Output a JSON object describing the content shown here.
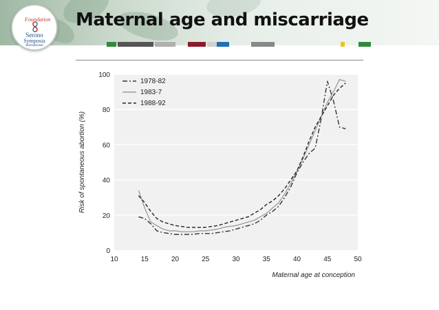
{
  "slide": {
    "title": "Maternal age and miscarriage",
    "logo": {
      "line1": "Serono",
      "line2": "Symposia",
      "line3": "International",
      "script": "Foundation"
    },
    "stripe_colors": [
      "#2f8a3e",
      "#555555",
      "#b0b0b0",
      "#8b1a2b",
      "#d0d0d0",
      "#1f6fb3",
      "#888888",
      "#f0c020",
      "#2f8a3e"
    ]
  },
  "chart_data": {
    "type": "line",
    "title": "",
    "xlabel": "Maternal age at conception",
    "ylabel": "Risk of spontaneous abortion (%)",
    "xlim": [
      10,
      50
    ],
    "ylim": [
      0,
      100
    ],
    "xticks": [
      10,
      15,
      20,
      25,
      30,
      35,
      40,
      45,
      50
    ],
    "yticks": [
      0,
      20,
      40,
      60,
      80,
      100
    ],
    "legend_position": "top-left",
    "series": [
      {
        "name": "1978-82",
        "style": "dashdot",
        "color": "#333333",
        "x": [
          14,
          15,
          16,
          17,
          18,
          19,
          20,
          21,
          22,
          23,
          24,
          25,
          26,
          27,
          28,
          29,
          30,
          31,
          32,
          33,
          34,
          35,
          36,
          37,
          38,
          39,
          40,
          41,
          42,
          43,
          44,
          45,
          46,
          47,
          48
        ],
        "y": [
          19,
          18,
          15,
          11,
          10,
          9.5,
          9,
          9,
          9,
          9,
          9.5,
          9.5,
          9.5,
          10,
          10.5,
          11,
          12,
          13,
          14,
          15,
          17,
          20,
          22,
          25,
          30,
          36,
          44,
          50,
          55,
          58,
          75,
          96,
          85,
          70,
          69
        ]
      },
      {
        "name": "1983-7",
        "style": "solid",
        "color": "#9a9a9a",
        "x": [
          14,
          15,
          16,
          17,
          18,
          19,
          20,
          21,
          22,
          23,
          24,
          25,
          26,
          27,
          28,
          29,
          30,
          31,
          32,
          33,
          34,
          35,
          36,
          37,
          38,
          39,
          40,
          41,
          42,
          43,
          44,
          45,
          46,
          47,
          48
        ],
        "y": [
          34,
          24,
          16,
          14,
          12,
          11,
          11,
          10.5,
          10.5,
          10.5,
          11,
          11,
          11.5,
          12,
          13,
          13.5,
          14,
          15,
          16,
          17,
          19,
          21,
          24,
          27,
          32,
          38,
          45,
          52,
          60,
          68,
          76,
          84,
          90,
          97,
          96
        ]
      },
      {
        "name": "1988-92",
        "style": "dashed",
        "color": "#222222",
        "x": [
          14,
          15,
          16,
          17,
          18,
          19,
          20,
          21,
          22,
          23,
          24,
          25,
          26,
          27,
          28,
          29,
          30,
          31,
          32,
          33,
          34,
          35,
          36,
          37,
          38,
          39,
          40,
          41,
          42,
          43,
          44,
          45,
          46,
          47,
          48
        ],
        "y": [
          31,
          27,
          22,
          18,
          16,
          15,
          14,
          13.5,
          13,
          13,
          13,
          13,
          13.5,
          14,
          15,
          16,
          17,
          18,
          19,
          21,
          23,
          26,
          28,
          31,
          35,
          40,
          45,
          53,
          62,
          70,
          76,
          82,
          88,
          92,
          95
        ]
      }
    ]
  }
}
